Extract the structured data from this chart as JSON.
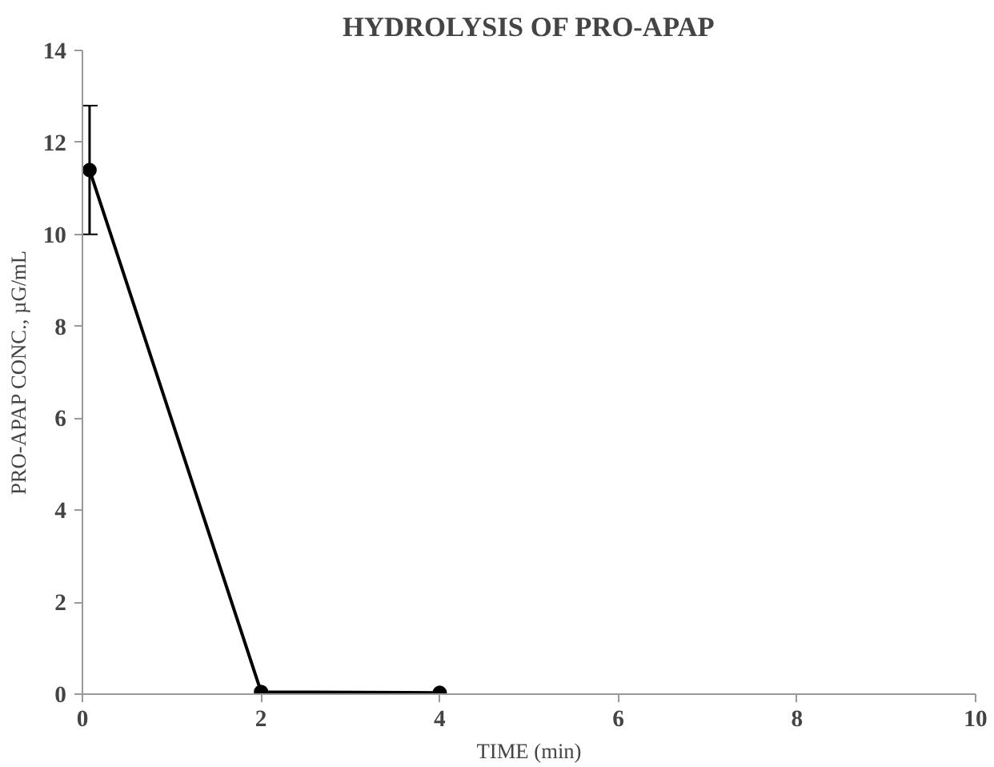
{
  "chart_data": {
    "type": "line",
    "title": "HYDROLYSIS OF PRO-APAP",
    "xlabel": "TIME (min)",
    "ylabel": "PRO-APAP CONC., µG/mL",
    "x": [
      0.08,
      2,
      4
    ],
    "series": [
      {
        "color": "#000000",
        "values": [
          11.4,
          0.05,
          0.03
        ],
        "errors": [
          1.4,
          null,
          null
        ]
      }
    ],
    "xlim": [
      0,
      10
    ],
    "xticks": [
      0,
      2,
      4,
      6,
      8,
      10
    ],
    "ylim": [
      0,
      14
    ],
    "yticks": [
      0,
      2,
      4,
      6,
      8,
      10,
      12,
      14
    ],
    "grid": false,
    "marker": "circle",
    "line_style": "solid"
  }
}
